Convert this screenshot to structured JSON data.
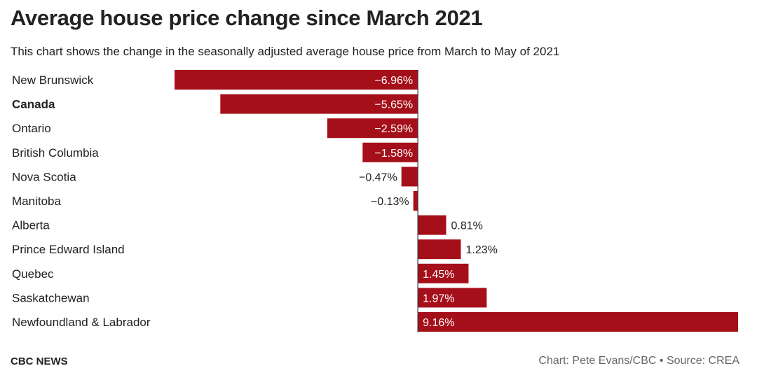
{
  "title": "Average house price change since March 2021",
  "subtitle": "This chart shows the change in the seasonally adjusted average house price from March to May of 2021",
  "footer": {
    "brand": "CBC NEWS",
    "credit": "Chart: Pete Evans/CBC • Source: CREA"
  },
  "colors": {
    "bar": "#a50f1a",
    "axis": "#333333",
    "label_inside": "#ffffff",
    "label_outside": "#222222"
  },
  "chart_data": {
    "type": "bar",
    "orientation": "horizontal",
    "title": "Average house price change since March 2021",
    "subtitle": "This chart shows the change in the seasonally adjusted average house price from March to May of 2021",
    "xlim": [
      -6.96,
      9.16
    ],
    "grid": false,
    "categories": [
      "New Brunswick",
      "Canada",
      "Ontario",
      "British Columbia",
      "Nova Scotia",
      "Manitoba",
      "Alberta",
      "Prince Edward Island",
      "Quebec",
      "Saskatchewan",
      "Newfoundland & Labrador"
    ],
    "values": [
      -6.96,
      -5.65,
      -2.59,
      -1.58,
      -0.47,
      -0.13,
      0.81,
      1.23,
      1.45,
      1.97,
      9.16
    ],
    "value_labels": [
      "−6.96%",
      "−5.65%",
      "−2.59%",
      "−1.58%",
      "−0.47%",
      "−0.13%",
      "0.81%",
      "1.23%",
      "1.45%",
      "1.97%",
      "9.16%"
    ],
    "bold_categories": [
      "Canada"
    ]
  }
}
